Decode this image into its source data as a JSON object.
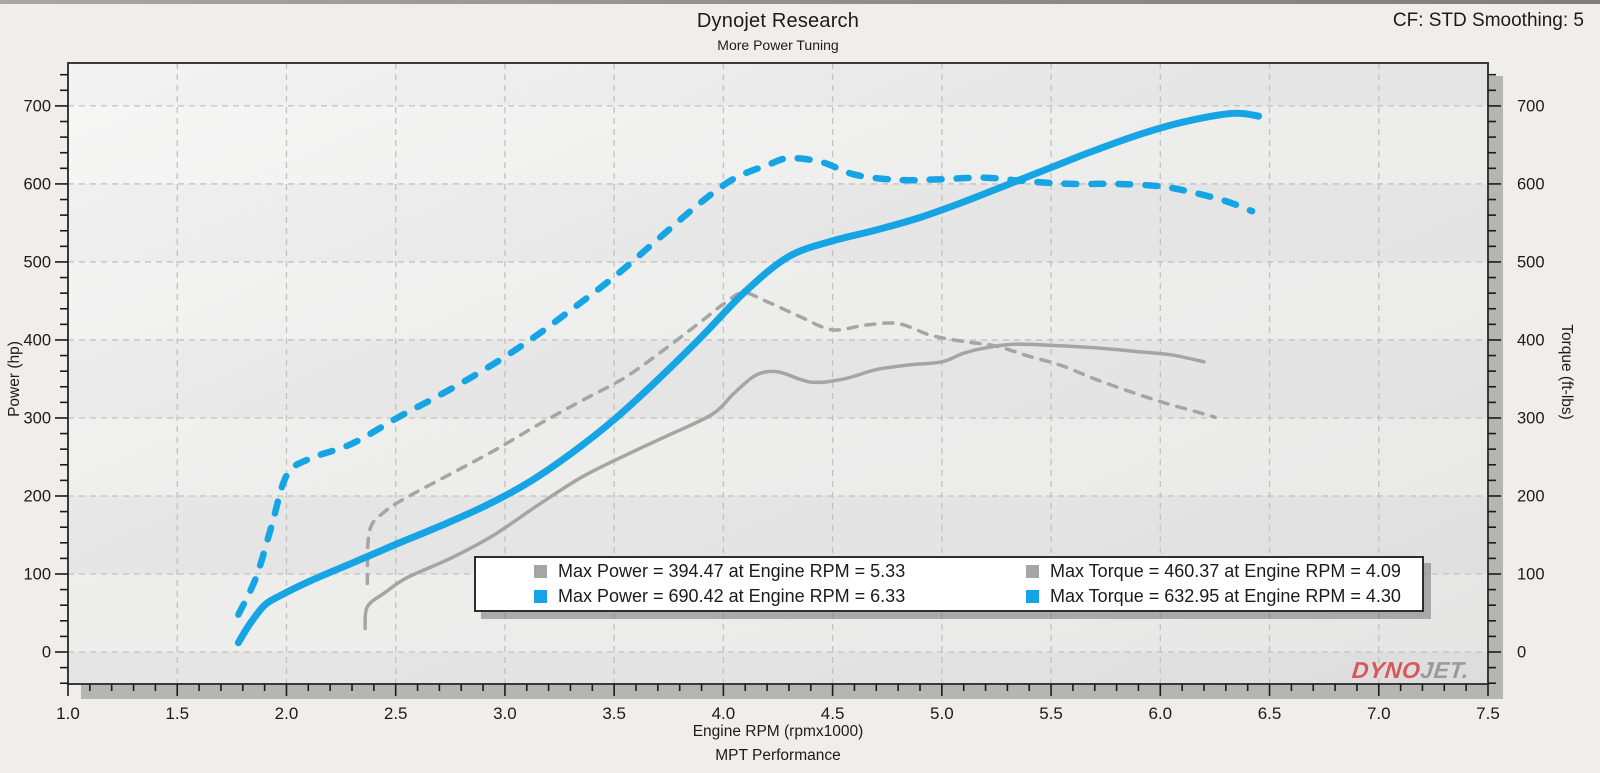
{
  "header": {
    "title": "Dynojet Research",
    "subtitle": "More Power Tuning",
    "cf_note": "CF: STD Smoothing: 5"
  },
  "logo": {
    "dyno": "DYNO",
    "jet": "JET."
  },
  "chart_data": {
    "type": "line",
    "title": "Dynojet Research",
    "subtitle": "More Power Tuning",
    "xlabel": "Engine RPM (rpmx1000)",
    "footer": "MPT Performance",
    "ylabel_left": "Power (hp)",
    "ylabel_right": "Torque (ft-lbs)",
    "xlim": [
      1.0,
      7.5
    ],
    "ylim": [
      0,
      700
    ],
    "x_tick_labels": [
      "1.0",
      "1.5",
      "2.0",
      "2.5",
      "3.0",
      "3.5",
      "4.0",
      "4.5",
      "5.0",
      "5.5",
      "6.0",
      "6.5",
      "7.0",
      "7.5"
    ],
    "y_tick_labels": [
      "0",
      "100",
      "200",
      "300",
      "400",
      "500",
      "600",
      "700"
    ],
    "x_minor_step": 0.1,
    "y_minor_step": 20,
    "grid": true,
    "legend_position": "bottom-center-inside",
    "colors": {
      "tuned": "#16a5e4",
      "baseline": "#a5a5a5",
      "grid": "#c2c2c2"
    },
    "series": [
      {
        "name": "baseline-torque",
        "axis": "right",
        "color": "#a5a5a5",
        "dash": "dashed",
        "width": 3.5,
        "points": [
          [
            2.37,
            88
          ],
          [
            2.38,
            155
          ],
          [
            2.45,
            180
          ],
          [
            2.55,
            198
          ],
          [
            2.75,
            228
          ],
          [
            2.95,
            258
          ],
          [
            3.15,
            291
          ],
          [
            3.35,
            322
          ],
          [
            3.55,
            352
          ],
          [
            3.75,
            392
          ],
          [
            3.9,
            424
          ],
          [
            4.0,
            446
          ],
          [
            4.09,
            460.4
          ],
          [
            4.2,
            449
          ],
          [
            4.35,
            430
          ],
          [
            4.5,
            413
          ],
          [
            4.65,
            419
          ],
          [
            4.8,
            421
          ],
          [
            4.95,
            406
          ],
          [
            5.1,
            398
          ],
          [
            5.25,
            392
          ],
          [
            5.4,
            379
          ],
          [
            5.55,
            367
          ],
          [
            5.7,
            350
          ],
          [
            5.85,
            335
          ],
          [
            6.0,
            321
          ],
          [
            6.15,
            309
          ],
          [
            6.25,
            301
          ]
        ]
      },
      {
        "name": "baseline-power",
        "axis": "left",
        "color": "#a5a5a5",
        "dash": "solid",
        "width": 3.5,
        "points": [
          [
            2.36,
            30
          ],
          [
            2.37,
            58
          ],
          [
            2.45,
            76
          ],
          [
            2.55,
            95
          ],
          [
            2.75,
            120
          ],
          [
            2.95,
            150
          ],
          [
            3.15,
            188
          ],
          [
            3.35,
            224
          ],
          [
            3.55,
            252
          ],
          [
            3.75,
            278
          ],
          [
            3.95,
            305
          ],
          [
            4.05,
            332
          ],
          [
            4.15,
            355
          ],
          [
            4.25,
            359
          ],
          [
            4.4,
            346
          ],
          [
            4.55,
            350
          ],
          [
            4.7,
            362
          ],
          [
            4.85,
            368
          ],
          [
            5.0,
            372
          ],
          [
            5.1,
            383
          ],
          [
            5.2,
            390
          ],
          [
            5.33,
            394.5
          ],
          [
            5.5,
            393
          ],
          [
            5.7,
            390
          ],
          [
            5.9,
            385
          ],
          [
            6.05,
            381
          ],
          [
            6.2,
            372
          ]
        ]
      },
      {
        "name": "tuned-torque",
        "axis": "right",
        "color": "#16a5e4",
        "dash": "dashed",
        "width": 6.5,
        "points": [
          [
            1.78,
            48
          ],
          [
            1.86,
            95
          ],
          [
            1.93,
            160
          ],
          [
            2.0,
            226
          ],
          [
            2.1,
            247
          ],
          [
            2.3,
            267
          ],
          [
            2.5,
            299
          ],
          [
            2.7,
            329
          ],
          [
            2.9,
            361
          ],
          [
            3.1,
            397
          ],
          [
            3.3,
            438
          ],
          [
            3.5,
            481
          ],
          [
            3.7,
            529
          ],
          [
            3.9,
            577
          ],
          [
            4.05,
            607
          ],
          [
            4.2,
            624
          ],
          [
            4.3,
            633
          ],
          [
            4.45,
            628
          ],
          [
            4.6,
            612
          ],
          [
            4.8,
            605
          ],
          [
            5.0,
            606
          ],
          [
            5.2,
            608
          ],
          [
            5.4,
            603
          ],
          [
            5.6,
            600
          ],
          [
            5.8,
            600
          ],
          [
            6.0,
            597
          ],
          [
            6.15,
            589
          ],
          [
            6.3,
            578
          ],
          [
            6.42,
            565
          ]
        ]
      },
      {
        "name": "tuned-power",
        "axis": "left",
        "color": "#16a5e4",
        "dash": "solid",
        "width": 7,
        "points": [
          [
            1.78,
            12
          ],
          [
            1.83,
            35
          ],
          [
            1.9,
            60
          ],
          [
            1.97,
            72
          ],
          [
            2.1,
            90
          ],
          [
            2.3,
            114
          ],
          [
            2.5,
            138
          ],
          [
            2.7,
            161
          ],
          [
            2.9,
            186
          ],
          [
            3.1,
            216
          ],
          [
            3.3,
            254
          ],
          [
            3.5,
            298
          ],
          [
            3.7,
            349
          ],
          [
            3.9,
            404
          ],
          [
            4.1,
            462
          ],
          [
            4.3,
            507
          ],
          [
            4.5,
            527
          ],
          [
            4.7,
            541
          ],
          [
            4.9,
            557
          ],
          [
            5.1,
            577
          ],
          [
            5.3,
            599
          ],
          [
            5.5,
            621
          ],
          [
            5.7,
            643
          ],
          [
            5.9,
            663
          ],
          [
            6.1,
            679
          ],
          [
            6.33,
            690.4
          ],
          [
            6.45,
            687
          ]
        ]
      }
    ],
    "legend": {
      "items": [
        {
          "color": "#a5a5a5",
          "text": "Max Power = 394.47 at Engine RPM = 5.33"
        },
        {
          "color": "#a5a5a5",
          "text": "Max Torque = 460.37 at Engine RPM = 4.09"
        },
        {
          "color": "#16a5e4",
          "text": "Max Power = 690.42 at Engine RPM = 6.33"
        },
        {
          "color": "#16a5e4",
          "text": "Max Torque = 632.95 at Engine RPM = 4.30"
        }
      ]
    }
  }
}
